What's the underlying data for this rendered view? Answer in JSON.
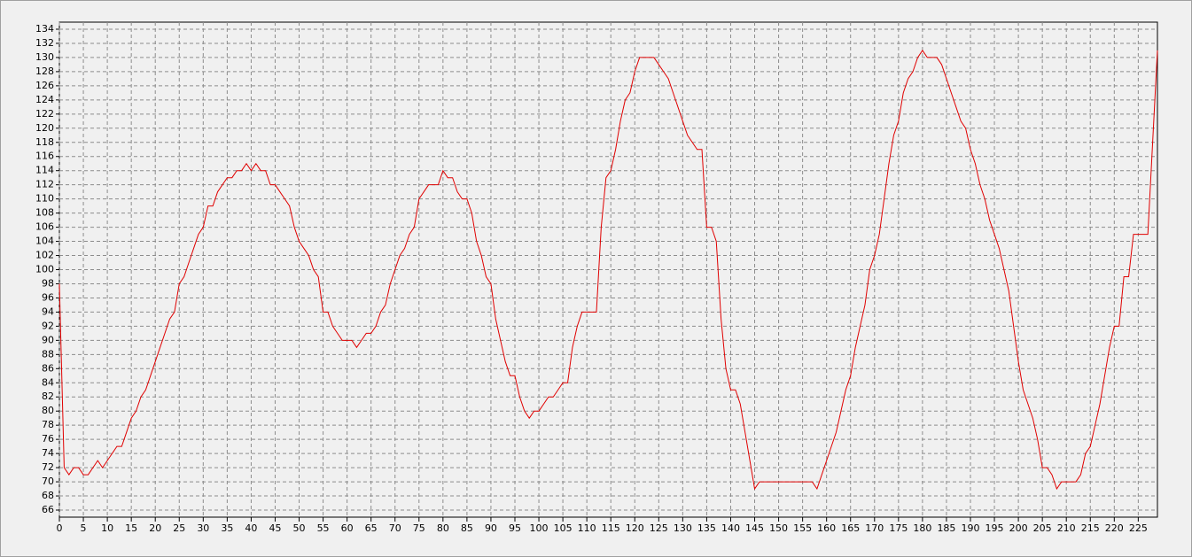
{
  "chart_data": {
    "type": "line",
    "x": [
      0,
      1,
      2,
      3,
      4,
      5,
      6,
      7,
      8,
      9,
      10,
      11,
      12,
      13,
      14,
      15,
      16,
      17,
      18,
      19,
      20,
      21,
      22,
      23,
      24,
      25,
      26,
      27,
      28,
      29,
      30,
      31,
      32,
      33,
      34,
      35,
      36,
      37,
      38,
      39,
      40,
      41,
      42,
      43,
      44,
      45,
      46,
      47,
      48,
      49,
      50,
      51,
      52,
      53,
      54,
      55,
      56,
      57,
      58,
      59,
      60,
      61,
      62,
      63,
      64,
      65,
      66,
      67,
      68,
      69,
      70,
      71,
      72,
      73,
      74,
      75,
      76,
      77,
      78,
      79,
      80,
      81,
      82,
      83,
      84,
      85,
      86,
      87,
      88,
      89,
      90,
      91,
      92,
      93,
      94,
      95,
      96,
      97,
      98,
      99,
      100,
      101,
      102,
      103,
      104,
      105,
      106,
      107,
      108,
      109,
      110,
      111,
      112,
      113,
      114,
      115,
      116,
      117,
      118,
      119,
      120,
      121,
      122,
      123,
      124,
      125,
      126,
      127,
      128,
      129,
      130,
      131,
      132,
      133,
      134,
      135,
      136,
      137,
      138,
      139,
      140,
      141,
      142,
      143,
      144,
      145,
      146,
      147,
      148,
      149,
      150,
      151,
      152,
      153,
      154,
      155,
      156,
      157,
      158,
      159,
      160,
      161,
      162,
      163,
      164,
      165,
      166,
      167,
      168,
      169,
      170,
      171,
      172,
      173,
      174,
      175,
      176,
      177,
      178,
      179,
      180,
      181,
      182,
      183,
      184,
      185,
      186,
      187,
      188,
      189,
      190,
      191,
      192,
      193,
      194,
      195,
      196,
      197,
      198,
      199,
      200,
      201,
      202,
      203,
      204,
      205,
      206,
      207,
      208,
      209,
      210,
      211,
      212,
      213,
      214,
      215,
      216,
      217,
      218,
      219,
      220,
      221,
      222,
      223,
      224,
      225,
      226,
      227,
      228,
      229
    ],
    "series": [
      {
        "color": "#e00000",
        "values": [
          98,
          72,
          71,
          72,
          72,
          71,
          71,
          72,
          73,
          72,
          73,
          74,
          75,
          75,
          77,
          79,
          80,
          82,
          83,
          85,
          87,
          89,
          91,
          93,
          94,
          98,
          99,
          101,
          103,
          105,
          106,
          109,
          109,
          111,
          112,
          113,
          113,
          114,
          114,
          115,
          114,
          115,
          114,
          114,
          112,
          112,
          111,
          110,
          109,
          106,
          104,
          103,
          102,
          100,
          99,
          94,
          94,
          92,
          91,
          90,
          90,
          90,
          89,
          90,
          91,
          91,
          92,
          94,
          95,
          98,
          100,
          102,
          103,
          105,
          106,
          110,
          111,
          112,
          112,
          112,
          114,
          113,
          113,
          111,
          110,
          110,
          108,
          104,
          102,
          99,
          98,
          93,
          90,
          87,
          85,
          85,
          82,
          80,
          79,
          80,
          80,
          81,
          82,
          82,
          83,
          84,
          84,
          89,
          92,
          94,
          94,
          94,
          94,
          106,
          113,
          114,
          117,
          121,
          124,
          125,
          128,
          130,
          130,
          130,
          130,
          129,
          128,
          127,
          125,
          123,
          121,
          119,
          118,
          117,
          117,
          106,
          106,
          104,
          93,
          86,
          83,
          83,
          81,
          77,
          73,
          69,
          70,
          70,
          70,
          70,
          70,
          70,
          70,
          70,
          70,
          70,
          70,
          70,
          69,
          71,
          73,
          75,
          77,
          80,
          83,
          85,
          89,
          92,
          95,
          100,
          102,
          105,
          110,
          115,
          119,
          121,
          125,
          127,
          128,
          130,
          131,
          130,
          130,
          130,
          129,
          127,
          125,
          123,
          121,
          120,
          117,
          115,
          112,
          110,
          107,
          105,
          103,
          100,
          97,
          92,
          87,
          83,
          81,
          79,
          76,
          72,
          72,
          71,
          69,
          70,
          70,
          70,
          70,
          71,
          74,
          75,
          78,
          81,
          85,
          89,
          92,
          92,
          99,
          99,
          105,
          105,
          105,
          105,
          118,
          131
        ]
      }
    ],
    "xlim": [
      0,
      229
    ],
    "xticks": [
      0,
      5,
      10,
      15,
      20,
      25,
      30,
      35,
      40,
      45,
      50,
      55,
      60,
      65,
      70,
      75,
      80,
      85,
      90,
      95,
      100,
      105,
      110,
      115,
      120,
      125,
      130,
      135,
      140,
      145,
      150,
      155,
      160,
      165,
      170,
      175,
      180,
      185,
      190,
      195,
      200,
      205,
      210,
      215,
      220,
      225
    ],
    "ylim": [
      65,
      135
    ],
    "yticks": [
      66,
      68,
      70,
      72,
      74,
      76,
      78,
      80,
      82,
      84,
      86,
      88,
      90,
      92,
      94,
      96,
      98,
      100,
      102,
      104,
      106,
      108,
      110,
      112,
      114,
      116,
      118,
      120,
      122,
      124,
      126,
      128,
      130,
      132,
      134
    ],
    "grid": true
  }
}
